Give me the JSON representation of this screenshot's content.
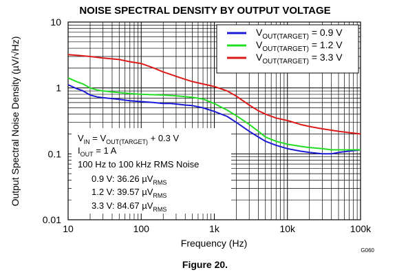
{
  "figure": {
    "caption": "Figure 20.",
    "code": "G060"
  },
  "chart_data": {
    "type": "line",
    "title": "NOISE SPECTRAL DENSITY BY OUTPUT VOLTAGE",
    "xlabel": "Frequency (Hz)",
    "ylabel": "Output Spectral Noise Density (µV/√Hz)",
    "xscale": "log",
    "yscale": "log",
    "xlim": [
      10,
      100000
    ],
    "ylim": [
      0.01,
      10
    ],
    "grid": true,
    "legend_position": "top-right",
    "x_tick_labels": [
      "10",
      "100",
      "1k",
      "10k",
      "100k"
    ],
    "y_tick_labels": [
      "10",
      "1",
      "0.1",
      "0.01"
    ],
    "series": [
      {
        "name": "VOUT(TARGET) = 0.9 V",
        "legend_main": "V",
        "legend_sub": "OUT(TARGET)",
        "legend_value": " = 0.9 V",
        "color": "#1a1ad6",
        "points": [
          [
            10,
            1.12
          ],
          [
            13,
            0.98
          ],
          [
            16,
            0.9
          ],
          [
            20,
            0.78
          ],
          [
            25,
            0.73
          ],
          [
            30,
            0.71
          ],
          [
            40,
            0.69
          ],
          [
            50,
            0.67
          ],
          [
            70,
            0.64
          ],
          [
            100,
            0.62
          ],
          [
            150,
            0.6
          ],
          [
            200,
            0.58
          ],
          [
            250,
            0.58
          ],
          [
            300,
            0.57
          ],
          [
            400,
            0.55
          ],
          [
            500,
            0.54
          ],
          [
            700,
            0.5
          ],
          [
            1000,
            0.44
          ],
          [
            1500,
            0.37
          ],
          [
            2000,
            0.3
          ],
          [
            3000,
            0.22
          ],
          [
            4000,
            0.18
          ],
          [
            5000,
            0.155
          ],
          [
            7000,
            0.135
          ],
          [
            10000,
            0.12
          ],
          [
            15000,
            0.11
          ],
          [
            20000,
            0.105
          ],
          [
            30000,
            0.1
          ],
          [
            40000,
            0.1
          ],
          [
            50000,
            0.105
          ],
          [
            70000,
            0.11
          ],
          [
            100000,
            0.115
          ]
        ]
      },
      {
        "name": "VOUT(TARGET) = 1.2 V",
        "legend_main": "V",
        "legend_sub": "OUT(TARGET)",
        "legend_value": " = 1.2 V",
        "color": "#22dd22",
        "points": [
          [
            10,
            1.42
          ],
          [
            13,
            1.25
          ],
          [
            16,
            1.15
          ],
          [
            20,
            1.0
          ],
          [
            25,
            0.93
          ],
          [
            30,
            0.9
          ],
          [
            40,
            0.87
          ],
          [
            50,
            0.85
          ],
          [
            70,
            0.82
          ],
          [
            100,
            0.8
          ],
          [
            150,
            0.79
          ],
          [
            200,
            0.78
          ],
          [
            300,
            0.76
          ],
          [
            400,
            0.74
          ],
          [
            500,
            0.72
          ],
          [
            700,
            0.68
          ],
          [
            1000,
            0.58
          ],
          [
            1500,
            0.46
          ],
          [
            2000,
            0.38
          ],
          [
            3000,
            0.28
          ],
          [
            4000,
            0.22
          ],
          [
            5000,
            0.18
          ],
          [
            7000,
            0.155
          ],
          [
            10000,
            0.14
          ],
          [
            15000,
            0.13
          ],
          [
            20000,
            0.125
          ],
          [
            30000,
            0.12
          ],
          [
            40000,
            0.115
          ],
          [
            50000,
            0.115
          ],
          [
            70000,
            0.115
          ],
          [
            100000,
            0.115
          ]
        ]
      },
      {
        "name": "VOUT(TARGET) = 3.3 V",
        "legend_main": "V",
        "legend_sub": "OUT(TARGET)",
        "legend_value": " = 3.3 V",
        "color": "#dd1a1a",
        "points": [
          [
            10,
            3.2
          ],
          [
            15,
            3.1
          ],
          [
            20,
            3.0
          ],
          [
            30,
            2.85
          ],
          [
            50,
            2.7
          ],
          [
            70,
            2.5
          ],
          [
            100,
            2.35
          ],
          [
            150,
            2.0
          ],
          [
            200,
            1.75
          ],
          [
            300,
            1.5
          ],
          [
            400,
            1.35
          ],
          [
            500,
            1.25
          ],
          [
            700,
            1.15
          ],
          [
            1000,
            1.05
          ],
          [
            1500,
            0.9
          ],
          [
            2000,
            0.75
          ],
          [
            3000,
            0.55
          ],
          [
            4000,
            0.45
          ],
          [
            5000,
            0.4
          ],
          [
            7000,
            0.35
          ],
          [
            10000,
            0.32
          ],
          [
            15000,
            0.28
          ],
          [
            20000,
            0.26
          ],
          [
            30000,
            0.24
          ],
          [
            50000,
            0.22
          ],
          [
            70000,
            0.21
          ],
          [
            100000,
            0.2
          ]
        ]
      }
    ],
    "annotations": [
      {
        "main": "V",
        "sub": "IN",
        "mid": " = V",
        "sub2": "OUT(TARGET)",
        "rest": " + 0.3 V"
      },
      {
        "main": "I",
        "sub": "OUT",
        "rest": " = 1 A"
      },
      {
        "text": "100 Hz to 100 kHz RMS Noise"
      },
      {
        "pre": "0.9 V: 36.26 µV",
        "sub": "RMS"
      },
      {
        "pre": "1.2 V: 39.57 µV",
        "sub": "RMS"
      },
      {
        "pre": "3.3 V: 84.67 µV",
        "sub": "RMS"
      }
    ]
  }
}
